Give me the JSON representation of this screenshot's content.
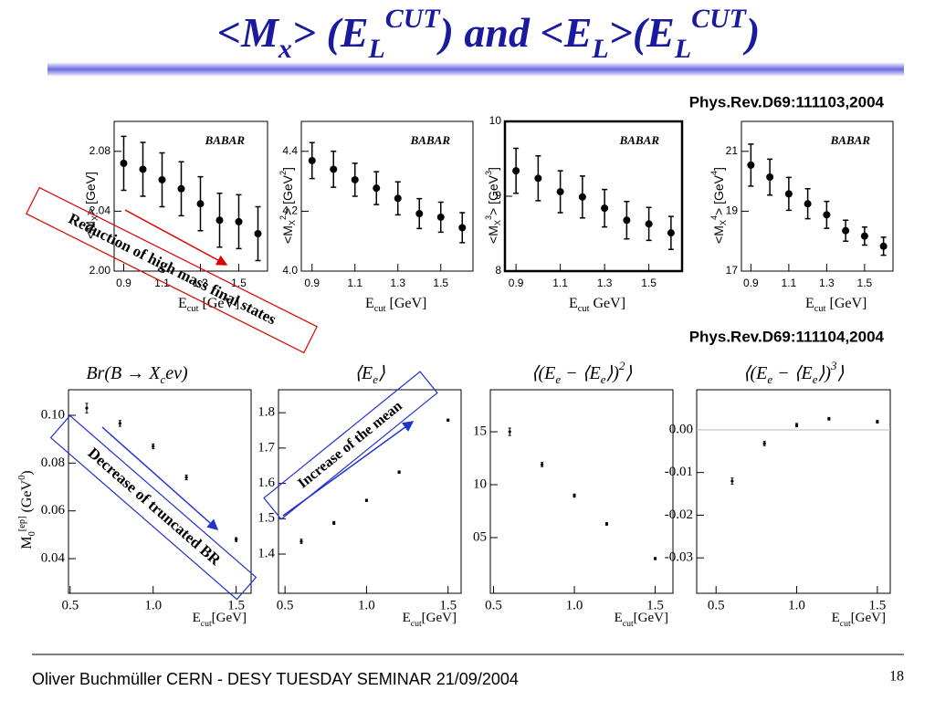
{
  "title": [
    {
      "text": "<M"
    },
    {
      "text": "x",
      "shift": "sub"
    },
    {
      "text": "> (E"
    },
    {
      "text": "L",
      "shift": "sub"
    },
    {
      "text": "CUT",
      "shift": "super"
    },
    {
      "text": ") and <E"
    },
    {
      "text": "L",
      "shift": "sub"
    },
    {
      "text": ">(E"
    },
    {
      "text": "L",
      "shift": "sub"
    },
    {
      "text": "CUT",
      "shift": "super"
    },
    {
      "text": ")"
    }
  ],
  "references": [
    "Phys.Rev.D69:111103,2004",
    "Phys.Rev.D69:111104,2004"
  ],
  "annotations": [
    "Reduction of high mass final states",
    "Decrease of truncated BR",
    "Increase of the mean"
  ],
  "footer": {
    "text": "Oliver Buchmüller CERN - DESY TUESDAY SEMINAR 21/09/2004",
    "page": "18"
  },
  "chart_data": [
    {
      "type": "scatter",
      "label": "BABAR",
      "color": "#000000",
      "y_label": [
        {
          "text": "<M"
        },
        {
          "text": "X",
          "shift": "sub"
        },
        {
          "text": "> [GeV]"
        }
      ],
      "x_label": [
        {
          "text": "E"
        },
        {
          "text": "cut",
          "shift": "sub"
        },
        {
          "text": " [GeV]"
        }
      ],
      "x": [
        0.9,
        1.0,
        1.1,
        1.2,
        1.3,
        1.4,
        1.5,
        1.6
      ],
      "values": [
        2.072,
        2.068,
        2.061,
        2.055,
        2.045,
        2.034,
        2.033,
        2.025
      ],
      "errors": [
        0.018,
        0.018,
        0.018,
        0.018,
        0.018,
        0.018,
        0.018,
        0.018
      ],
      "xlim": [
        0.85,
        1.65
      ],
      "ylim": [
        2.0,
        2.1
      ],
      "xticks": [
        0.9,
        1.1,
        1.3,
        1.5
      ],
      "yticks": [
        {
          "value": 2.0,
          "label": "2.00"
        },
        2.04,
        2.08
      ]
    },
    {
      "type": "scatter",
      "label": "BABAR",
      "color": "#000000",
      "y_label": [
        {
          "text": "<M"
        },
        {
          "text": "X",
          "shift": "sub"
        },
        {
          "text": "2",
          "shift": "super"
        },
        {
          "text": "> [GeV"
        },
        {
          "text": "2",
          "shift": "super"
        },
        {
          "text": "]"
        }
      ],
      "x_label": [
        {
          "text": "E"
        },
        {
          "text": "cut",
          "shift": "sub"
        },
        {
          "text": " [GeV]"
        }
      ],
      "x": [
        0.9,
        1.0,
        1.1,
        1.2,
        1.3,
        1.4,
        1.5,
        1.6
      ],
      "values": [
        4.369,
        4.34,
        4.305,
        4.277,
        4.243,
        4.192,
        4.18,
        4.145
      ],
      "errors": [
        0.06,
        0.06,
        0.055,
        0.055,
        0.055,
        0.05,
        0.05,
        0.05
      ],
      "xlim": [
        0.85,
        1.65
      ],
      "ylim": [
        4.0,
        4.5
      ],
      "xticks": [
        0.9,
        1.1,
        1.3,
        1.5
      ],
      "yticks": [
        {
          "value": 4,
          "label": "4.0"
        },
        4.2,
        4.4
      ]
    },
    {
      "type": "scatter",
      "label": "BABAR",
      "color": "#000000",
      "highlight": true,
      "y_label": [
        {
          "text": "<M"
        },
        {
          "text": "X",
          "shift": "sub"
        },
        {
          "text": "3",
          "shift": "super"
        },
        {
          "text": "> [GeV"
        },
        {
          "text": "3",
          "shift": "super"
        },
        {
          "text": "]"
        }
      ],
      "x_label": [
        {
          "text": "E"
        },
        {
          "text": "cut",
          "shift": "sub"
        },
        {
          "text": " GeV]"
        }
      ],
      "x": [
        0.9,
        1.0,
        1.1,
        1.2,
        1.3,
        1.4,
        1.5,
        1.6
      ],
      "values": [
        9.34,
        9.24,
        9.06,
        8.99,
        8.84,
        8.68,
        8.63,
        8.51
      ],
      "errors": [
        0.3,
        0.3,
        0.28,
        0.28,
        0.25,
        0.25,
        0.22,
        0.22
      ],
      "xlim": [
        0.85,
        1.65
      ],
      "ylim": [
        8,
        10
      ],
      "xticks": [
        0.9,
        1.1,
        1.3,
        1.5
      ],
      "yticks": [
        8,
        9,
        10
      ]
    },
    {
      "type": "scatter",
      "label": "BABAR",
      "color": "#000000",
      "y_label": [
        {
          "text": "<M"
        },
        {
          "text": "X",
          "shift": "sub"
        },
        {
          "text": "4",
          "shift": "super"
        },
        {
          "text": "> [GeV"
        },
        {
          "text": "4",
          "shift": "super"
        },
        {
          "text": "]"
        }
      ],
      "x_label": [
        {
          "text": "E"
        },
        {
          "text": "cut",
          "shift": "sub"
        },
        {
          "text": " [GeV]"
        }
      ],
      "x": [
        0.9,
        1.0,
        1.1,
        1.2,
        1.3,
        1.4,
        1.5,
        1.6
      ],
      "values": [
        20.54,
        20.14,
        19.58,
        19.25,
        18.88,
        18.35,
        18.17,
        17.83
      ],
      "errors": [
        0.7,
        0.6,
        0.55,
        0.5,
        0.45,
        0.35,
        0.3,
        0.3
      ],
      "xlim": [
        0.85,
        1.65
      ],
      "ylim": [
        17,
        22
      ],
      "xticks": [
        0.9,
        1.1,
        1.3,
        1.5
      ],
      "yticks": [
        17,
        19,
        21
      ]
    },
    {
      "type": "scatter",
      "color": "#000000",
      "title": [
        {
          "text": "Br(B → X"
        },
        {
          "text": "c",
          "shift": "sub"
        },
        {
          "text": "eν)"
        }
      ],
      "y_label": [
        {
          "text": "M"
        },
        {
          "text": "0",
          "shift": "sub"
        },
        {
          "text": "[ep]",
          "shift": "super"
        },
        {
          "text": " (GeV"
        },
        {
          "text": "0",
          "shift": "super"
        },
        {
          "text": ")"
        }
      ],
      "x_label": [
        {
          "text": "E"
        },
        {
          "text": "cut",
          "shift": "sub"
        },
        {
          "text": "[GeV]"
        }
      ],
      "x": [
        0.6,
        0.8,
        1.0,
        1.2,
        1.5
      ],
      "values": [
        0.103,
        0.0966,
        0.087,
        0.074,
        0.048
      ],
      "errors": [
        0.002,
        0.0012,
        0.001,
        0.001,
        0.0008
      ],
      "xlim": [
        0.49,
        1.59
      ],
      "ylim": [
        0.0255,
        0.1107
      ],
      "xticks": [
        0.5,
        {
          "value": 1,
          "label": "1.0"
        },
        1.5
      ],
      "yticks": [
        0.04,
        0.06,
        0.08,
        {
          "value": 0.1,
          "label": "0.10"
        }
      ]
    },
    {
      "type": "scatter",
      "color": "#000000",
      "title": [
        {
          "text": "⟨E"
        },
        {
          "text": "e",
          "shift": "sub"
        },
        {
          "text": "⟩"
        }
      ],
      "x_label": [
        {
          "text": "E"
        },
        {
          "text": "cut",
          "shift": "sub"
        },
        {
          "text": "[GeV]"
        }
      ],
      "x": [
        0.6,
        0.8,
        1.0,
        1.2,
        1.5
      ],
      "values": [
        1.436,
        1.488,
        1.552,
        1.632,
        1.779
      ],
      "errors": [
        0.006,
        0.004,
        0.003,
        0.003,
        0.003
      ],
      "xlim": [
        0.46,
        1.58
      ],
      "ylim": [
        1.289,
        1.865
      ],
      "xticks": [
        0.5,
        {
          "value": 1,
          "label": "1.0"
        },
        1.5
      ],
      "yticks": [
        1.4,
        1.5,
        1.6,
        1.7,
        1.8
      ]
    },
    {
      "type": "scatter",
      "color": "#000000",
      "title": [
        {
          "text": "⟨(E"
        },
        {
          "text": "e",
          "shift": "sub"
        },
        {
          "text": " − ⟨E"
        },
        {
          "text": "e",
          "shift": "sub"
        },
        {
          "text": "⟩)"
        },
        {
          "text": "2",
          "shift": "super"
        },
        {
          "text": "⟩"
        }
      ],
      "x_label": [
        {
          "text": "E"
        },
        {
          "text": "cut",
          "shift": "sub"
        },
        {
          "text": "[GeV]"
        }
      ],
      "x": [
        0.6,
        0.8,
        1.0,
        1.2,
        1.5
      ],
      "values": [
        15.0,
        11.9,
        8.97,
        6.29,
        3.02
      ],
      "errors": [
        0.35,
        0.2,
        0.15,
        0.12,
        0.1
      ],
      "xlim": [
        0.48,
        1.61
      ],
      "ylim": [
        -0.26,
        18.97
      ],
      "xticks": [
        0.5,
        {
          "value": 1,
          "label": "1.0"
        },
        1.5
      ],
      "yticks": [
        {
          "value": 5,
          "label": "05"
        },
        10,
        15
      ]
    },
    {
      "type": "scatter",
      "color": "#000000",
      "zero_line": true,
      "title": [
        {
          "text": "⟨(E"
        },
        {
          "text": "e",
          "shift": "sub"
        },
        {
          "text": " − ⟨E"
        },
        {
          "text": "e",
          "shift": "sub"
        },
        {
          "text": "⟩)"
        },
        {
          "text": "3",
          "shift": "super"
        },
        {
          "text": "⟩"
        }
      ],
      "x_label": [
        {
          "text": "E"
        },
        {
          "text": "cut",
          "shift": "sub"
        },
        {
          "text": "[GeV]"
        }
      ],
      "x": [
        0.6,
        0.8,
        1.0,
        1.2,
        1.5
      ],
      "values": [
        -0.012,
        -0.0032,
        0.0011,
        0.0026,
        0.0019
      ],
      "errors": [
        0.0007,
        0.0005,
        0.0004,
        0.0003,
        0.0003
      ],
      "xlim": [
        0.38,
        1.58
      ],
      "ylim": [
        -0.0383,
        0.0094
      ],
      "xticks": [
        0.5,
        {
          "value": 1,
          "label": "1.0"
        },
        1.5
      ],
      "yticks": [
        -0.03,
        -0.02,
        -0.01,
        {
          "value": 0,
          "label": "0.00"
        }
      ]
    }
  ]
}
